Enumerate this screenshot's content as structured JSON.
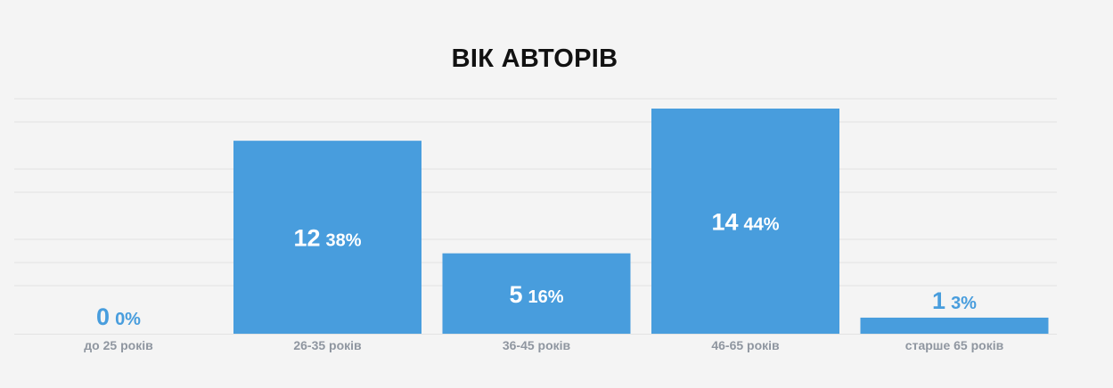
{
  "chart_data": {
    "type": "bar",
    "title": "ВІК АВТОРІВ",
    "categories": [
      "до 25 років",
      "26-35 років",
      "36-45 років",
      "46-65 років",
      "старше 65 років"
    ],
    "values": [
      0,
      12,
      5,
      14,
      1
    ],
    "percent_labels": [
      "0%",
      "38%",
      "16%",
      "44%",
      "3%"
    ],
    "ylim": [
      0,
      14.5
    ],
    "grid": true,
    "legend": "none",
    "bar_color": "#489ddd",
    "label_inside_color": "#ffffff",
    "label_outside_color": "#489ddd",
    "tick_color": "#8f96a0",
    "grid_color": "#e2e2e2"
  }
}
